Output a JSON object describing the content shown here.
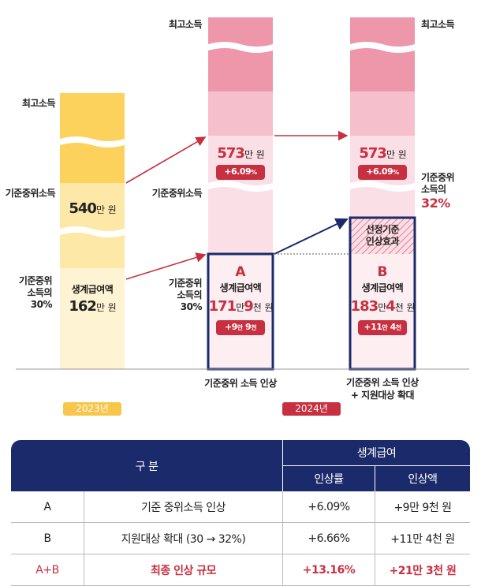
{
  "labels": {
    "top_income": "최고소득",
    "median_income": "기준중위소득",
    "median_30_l1": "기준중위",
    "median_30_l2": "소득의",
    "median_30_l3": "30%",
    "median_32_l1": "기준중위",
    "median_32_l2": "소득의",
    "median_32_l3": "32%",
    "benefit": "생계급여액",
    "won": "원",
    "man": "만",
    "cheon": "천"
  },
  "col2023": {
    "median_value": "540",
    "benefit_value": "162",
    "year": "2023년"
  },
  "col2024a": {
    "median_value": "573",
    "median_change": "+6.09",
    "median_change_unit": "%",
    "marker": "A",
    "benefit_man": "171",
    "benefit_cheon": "9",
    "change_man": "+9",
    "change_cheon": "9",
    "caption": "기준중위 소득 인상",
    "year": "2024년"
  },
  "col2024b": {
    "median_value": "573",
    "median_change": "+6.09",
    "median_change_unit": "%",
    "effect_l1": "선정기준",
    "effect_l2": "인상효과",
    "marker": "B",
    "benefit_man": "183",
    "benefit_cheon": "4",
    "change_man": "+11",
    "change_cheon": "4",
    "caption_l1": "기준중위 소득 인상",
    "caption_l2": "+ 지원대상 확대"
  },
  "colors": {
    "yellow_dark": "#fcd15c",
    "yellow_light": "#fde8a8",
    "yellow_pale": "#fef3d2",
    "pink_dark": "#ee97ab",
    "pink_mid": "#f6bfcc",
    "pink_light": "#fbdfe6",
    "red": "#c73040",
    "navy": "#1b2a6b"
  },
  "table": {
    "col_category": "구   분",
    "col_group": "생계급여",
    "col_rate": "인상률",
    "col_amount": "인상액",
    "rows": [
      {
        "id": "A",
        "desc": "기준 중위소득 인상",
        "rate": "+6.09%",
        "amount": "+9만 9천 원"
      },
      {
        "id": "B",
        "desc": "지원대상 확대 (30 → 32%)",
        "rate": "+6.66%",
        "amount": "+11만 4천 원"
      },
      {
        "id": "A+B",
        "desc": "최종 인상 규모",
        "rate": "+13.16%",
        "amount": "+21만 3천 원"
      }
    ]
  }
}
